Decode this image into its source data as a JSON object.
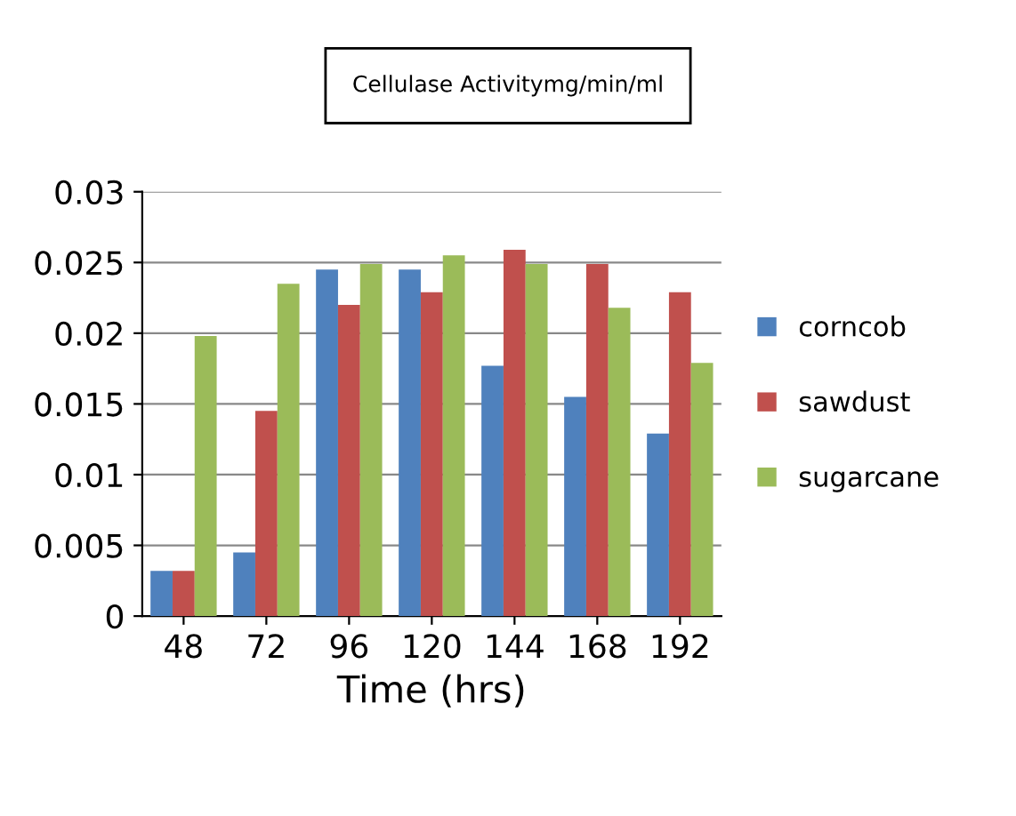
{
  "chart_data": {
    "type": "bar",
    "title": "Cellulase Activitymg/min/ml",
    "xlabel": "Time (hrs)",
    "categories": [
      "48",
      "72",
      "96",
      "120",
      "144",
      "168",
      "192"
    ],
    "series": [
      {
        "name": "corncob",
        "color": "#4f81bd",
        "values": [
          0.0032,
          0.0045,
          0.0245,
          0.0245,
          0.0177,
          0.0155,
          0.0129
        ]
      },
      {
        "name": "sawdust",
        "color": "#c0504d",
        "values": [
          0.0032,
          0.0145,
          0.022,
          0.0229,
          0.0259,
          0.0249,
          0.0229
        ]
      },
      {
        "name": "sugarcane",
        "color": "#9bbb59",
        "values": [
          0.0198,
          0.0235,
          0.0249,
          0.0255,
          0.0249,
          0.0218,
          0.0179
        ]
      }
    ],
    "ylim": [
      0,
      0.03
    ],
    "yticks": [
      0,
      0.005,
      0.01,
      0.015,
      0.02,
      0.025,
      0.03
    ],
    "grid": "y",
    "legend": "right"
  }
}
